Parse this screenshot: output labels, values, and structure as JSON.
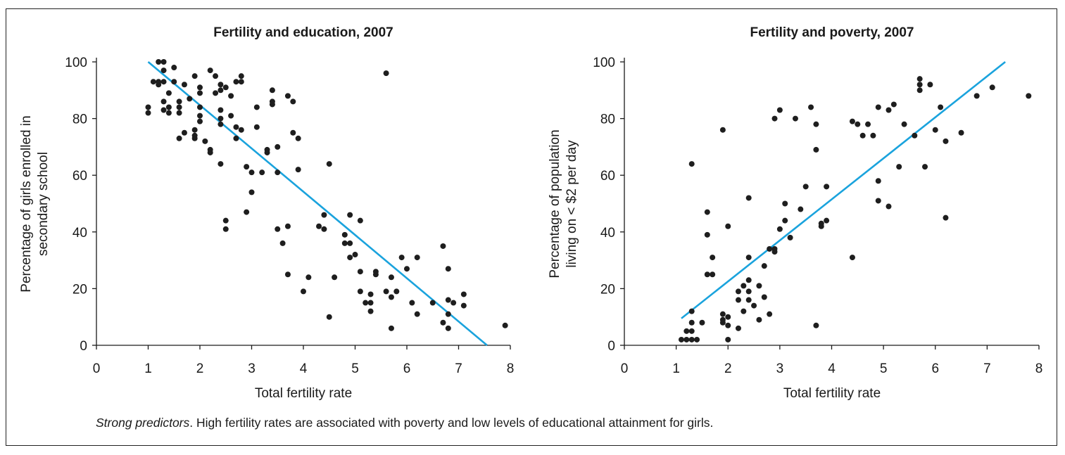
{
  "caption": {
    "lead": "Strong predictors",
    "text": ". High fertility rates are associated with poverty and low levels of educational attainment for girls."
  },
  "colors": {
    "points": "#1e1e1e",
    "trend": "#1aa3dd",
    "axis": "#1a1a1a"
  },
  "chart_data": [
    {
      "type": "scatter",
      "title": "Fertility and education, 2007",
      "xlabel": "Total fertility rate",
      "ylabel": [
        "Percentage of girls enrolled in",
        "secondary school"
      ],
      "xlim": [
        0,
        8
      ],
      "ylim": [
        0,
        100
      ],
      "xticks": [
        0,
        1,
        2,
        3,
        4,
        5,
        6,
        7,
        8
      ],
      "yticks": [
        0,
        20,
        40,
        60,
        80,
        100
      ],
      "trend_line": {
        "x": [
          1.0,
          7.55
        ],
        "y": [
          100,
          0
        ]
      },
      "points": [
        [
          1.0,
          84
        ],
        [
          1.0,
          82
        ],
        [
          1.1,
          93
        ],
        [
          1.2,
          93
        ],
        [
          1.2,
          92
        ],
        [
          1.2,
          100
        ],
        [
          1.3,
          100
        ],
        [
          1.3,
          97
        ],
        [
          1.3,
          93
        ],
        [
          1.3,
          86
        ],
        [
          1.3,
          83
        ],
        [
          1.4,
          89
        ],
        [
          1.4,
          84
        ],
        [
          1.4,
          82
        ],
        [
          1.5,
          98
        ],
        [
          1.5,
          93
        ],
        [
          1.6,
          86
        ],
        [
          1.6,
          84
        ],
        [
          1.6,
          82
        ],
        [
          1.6,
          73
        ],
        [
          1.7,
          92
        ],
        [
          1.7,
          75
        ],
        [
          1.8,
          87
        ],
        [
          1.9,
          95
        ],
        [
          1.9,
          76
        ],
        [
          1.9,
          74
        ],
        [
          1.9,
          73
        ],
        [
          2.0,
          91
        ],
        [
          2.0,
          89
        ],
        [
          2.0,
          84
        ],
        [
          2.0,
          81
        ],
        [
          2.0,
          79
        ],
        [
          2.1,
          72
        ],
        [
          2.2,
          97
        ],
        [
          2.2,
          69
        ],
        [
          2.2,
          68
        ],
        [
          2.3,
          95
        ],
        [
          2.3,
          89
        ],
        [
          2.4,
          92
        ],
        [
          2.4,
          90
        ],
        [
          2.4,
          83
        ],
        [
          2.4,
          80
        ],
        [
          2.4,
          78
        ],
        [
          2.4,
          64
        ],
        [
          2.5,
          91
        ],
        [
          2.5,
          44
        ],
        [
          2.5,
          41
        ],
        [
          2.6,
          88
        ],
        [
          2.6,
          81
        ],
        [
          2.7,
          93
        ],
        [
          2.7,
          77
        ],
        [
          2.7,
          73
        ],
        [
          2.8,
          95
        ],
        [
          2.8,
          93
        ],
        [
          2.8,
          76
        ],
        [
          2.9,
          63
        ],
        [
          2.9,
          47
        ],
        [
          3.0,
          61
        ],
        [
          3.0,
          54
        ],
        [
          3.1,
          84
        ],
        [
          3.1,
          77
        ],
        [
          3.2,
          61
        ],
        [
          3.3,
          69
        ],
        [
          3.3,
          68
        ],
        [
          3.4,
          90
        ],
        [
          3.4,
          86
        ],
        [
          3.4,
          85
        ],
        [
          3.5,
          70
        ],
        [
          3.5,
          61
        ],
        [
          3.5,
          41
        ],
        [
          3.6,
          36
        ],
        [
          3.7,
          88
        ],
        [
          3.7,
          42
        ],
        [
          3.7,
          25
        ],
        [
          3.8,
          86
        ],
        [
          3.8,
          75
        ],
        [
          3.9,
          73
        ],
        [
          3.9,
          62
        ],
        [
          4.0,
          19
        ],
        [
          4.1,
          24
        ],
        [
          4.3,
          42
        ],
        [
          4.4,
          46
        ],
        [
          4.4,
          41
        ],
        [
          4.5,
          64
        ],
        [
          4.5,
          10
        ],
        [
          4.6,
          24
        ],
        [
          4.8,
          39
        ],
        [
          4.8,
          36
        ],
        [
          4.9,
          46
        ],
        [
          4.9,
          36
        ],
        [
          4.9,
          31
        ],
        [
          5.0,
          32
        ],
        [
          5.1,
          44
        ],
        [
          5.1,
          26
        ],
        [
          5.1,
          19
        ],
        [
          5.2,
          15
        ],
        [
          5.3,
          18
        ],
        [
          5.3,
          15
        ],
        [
          5.3,
          12
        ],
        [
          5.4,
          26
        ],
        [
          5.4,
          25
        ],
        [
          5.6,
          96
        ],
        [
          5.6,
          19
        ],
        [
          5.7,
          24
        ],
        [
          5.7,
          17
        ],
        [
          5.7,
          6
        ],
        [
          5.8,
          19
        ],
        [
          5.9,
          31
        ],
        [
          6.0,
          27
        ],
        [
          6.1,
          15
        ],
        [
          6.2,
          31
        ],
        [
          6.2,
          11
        ],
        [
          6.5,
          15
        ],
        [
          6.7,
          35
        ],
        [
          6.7,
          8
        ],
        [
          6.8,
          27
        ],
        [
          6.8,
          16
        ],
        [
          6.8,
          11
        ],
        [
          6.8,
          6
        ],
        [
          6.9,
          15
        ],
        [
          7.1,
          18
        ],
        [
          7.1,
          14
        ],
        [
          7.9,
          7
        ]
      ]
    },
    {
      "type": "scatter",
      "title": "Fertility and poverty, 2007",
      "xlabel": "Total fertility rate",
      "ylabel": [
        "Percentage of population",
        "living on < $2 per day"
      ],
      "xlim": [
        0,
        8
      ],
      "ylim": [
        0,
        100
      ],
      "xticks": [
        0,
        1,
        2,
        3,
        4,
        5,
        6,
        7,
        8
      ],
      "yticks": [
        0,
        20,
        40,
        60,
        80,
        100
      ],
      "trend_line": {
        "x": [
          1.1,
          7.35
        ],
        "y": [
          9.5,
          100
        ]
      },
      "points": [
        [
          1.1,
          2
        ],
        [
          1.2,
          5
        ],
        [
          1.2,
          2
        ],
        [
          1.3,
          64
        ],
        [
          1.3,
          12
        ],
        [
          1.3,
          8
        ],
        [
          1.3,
          5
        ],
        [
          1.3,
          2
        ],
        [
          1.4,
          2
        ],
        [
          1.5,
          8
        ],
        [
          1.6,
          47
        ],
        [
          1.6,
          39
        ],
        [
          1.6,
          25
        ],
        [
          1.7,
          31
        ],
        [
          1.7,
          25
        ],
        [
          1.9,
          76
        ],
        [
          1.9,
          11
        ],
        [
          1.9,
          9
        ],
        [
          1.9,
          8
        ],
        [
          2.0,
          42
        ],
        [
          2.0,
          10
        ],
        [
          2.0,
          7
        ],
        [
          2.0,
          2
        ],
        [
          2.2,
          19
        ],
        [
          2.2,
          16
        ],
        [
          2.2,
          6
        ],
        [
          2.3,
          21
        ],
        [
          2.3,
          12
        ],
        [
          2.4,
          52
        ],
        [
          2.4,
          31
        ],
        [
          2.4,
          23
        ],
        [
          2.4,
          19
        ],
        [
          2.4,
          16
        ],
        [
          2.5,
          14
        ],
        [
          2.6,
          21
        ],
        [
          2.6,
          9
        ],
        [
          2.7,
          28
        ],
        [
          2.7,
          17
        ],
        [
          2.8,
          34
        ],
        [
          2.8,
          11
        ],
        [
          2.9,
          80
        ],
        [
          2.9,
          34
        ],
        [
          2.9,
          33
        ],
        [
          3.0,
          83
        ],
        [
          3.0,
          41
        ],
        [
          3.1,
          50
        ],
        [
          3.1,
          44
        ],
        [
          3.2,
          38
        ],
        [
          3.3,
          80
        ],
        [
          3.4,
          48
        ],
        [
          3.5,
          56
        ],
        [
          3.6,
          84
        ],
        [
          3.7,
          78
        ],
        [
          3.7,
          69
        ],
        [
          3.7,
          7
        ],
        [
          3.8,
          43
        ],
        [
          3.8,
          42
        ],
        [
          3.9,
          56
        ],
        [
          3.9,
          44
        ],
        [
          4.4,
          79
        ],
        [
          4.4,
          31
        ],
        [
          4.5,
          78
        ],
        [
          4.6,
          74
        ],
        [
          4.7,
          78
        ],
        [
          4.8,
          74
        ],
        [
          4.9,
          84
        ],
        [
          4.9,
          58
        ],
        [
          4.9,
          51
        ],
        [
          5.1,
          83
        ],
        [
          5.1,
          49
        ],
        [
          5.2,
          85
        ],
        [
          5.3,
          63
        ],
        [
          5.4,
          78
        ],
        [
          5.6,
          74
        ],
        [
          5.7,
          94
        ],
        [
          5.7,
          92
        ],
        [
          5.7,
          90
        ],
        [
          5.8,
          63
        ],
        [
          5.9,
          92
        ],
        [
          6.0,
          76
        ],
        [
          6.1,
          84
        ],
        [
          6.2,
          72
        ],
        [
          6.2,
          45
        ],
        [
          6.5,
          75
        ],
        [
          6.8,
          88
        ],
        [
          7.1,
          91
        ],
        [
          7.8,
          88
        ]
      ]
    }
  ]
}
